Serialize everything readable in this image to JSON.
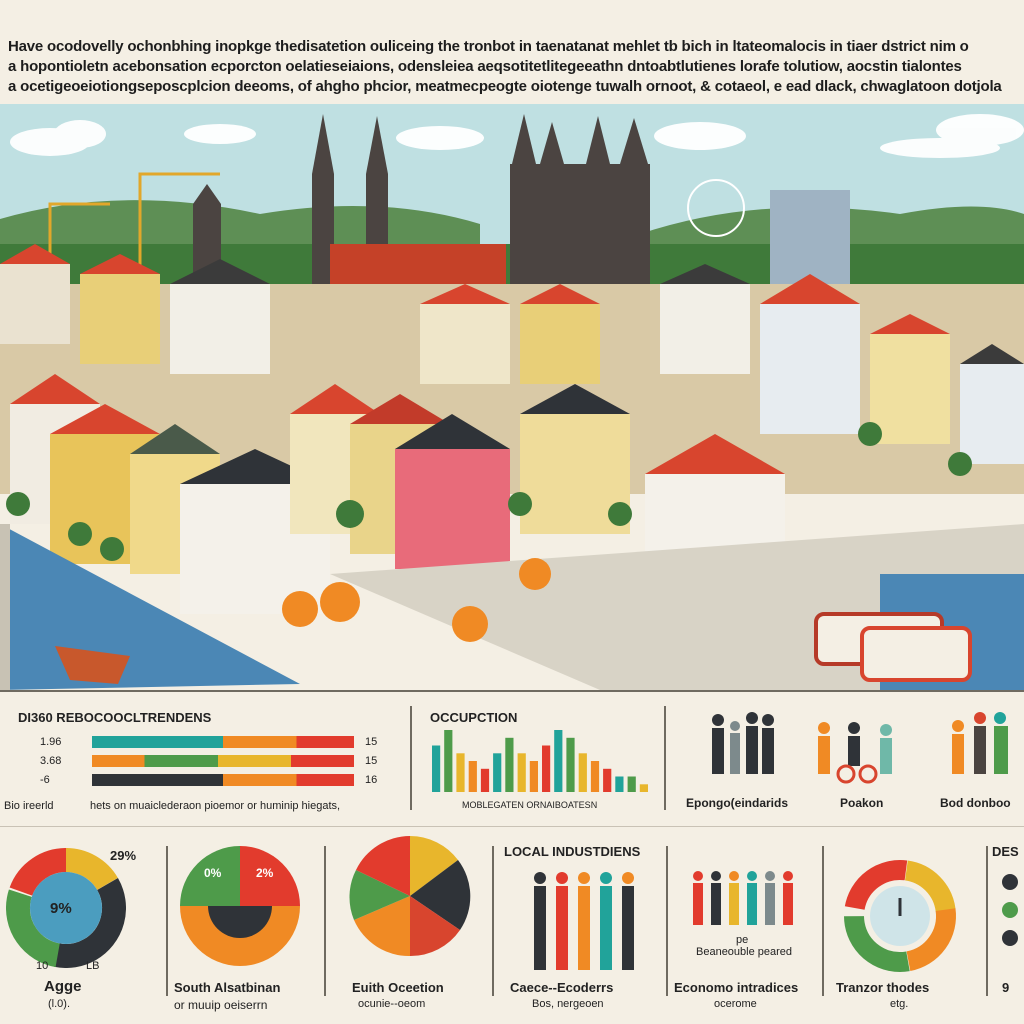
{
  "header": {
    "line1": "Have ocodovelly ochonbhing inopkge thedisatetion ouliceing the tronbot in taenatanat mehlet tb bich in ltateomalocis in tiaer dstrict nim o",
    "line2": "a hopontioletn acebonsation ecporcton oelatieseiaions, odensleiea aeqsotitetlitegeeathn dntoabtlutienes lorafe tolutiow, aocstin tialontes",
    "line3": "a ocetigeoeiotiongseposcplcion deeoms, of ahgho phcior, meatmecpeogte oiotenge tuwalh ornoot, & cotaeol, e ead dlack, chwaglatoon dotjola"
  },
  "panels": {
    "demographic": {
      "title": "DI360 REBOCOOCLTRENDENS",
      "rows": [
        {
          "left": "1.96",
          "right": "15"
        },
        {
          "left": "3.68",
          "right": "15"
        },
        {
          "left": "-6",
          "right": "16"
        }
      ],
      "footer_left": "Bio ireerld",
      "footer_right": "hets on muaiclederaon pioemor or huminip hiegats,"
    },
    "occupation": {
      "title": "OCCUPCTION",
      "caption": "MOBLEGATEN ORNAIBOATESN",
      "values": [
        6,
        8,
        5,
        4,
        3,
        5,
        7,
        5,
        4,
        6,
        8,
        7,
        5,
        4,
        3,
        2,
        2,
        1
      ]
    },
    "people1": {
      "label": "Epongo(eindarids"
    },
    "people2": {
      "label": "Poakon"
    },
    "people3": {
      "label": "Bod donboo"
    },
    "age": {
      "label": "Agge",
      "sub": "(l.0).",
      "pct_top": "29%",
      "pct_center": "9%",
      "tick_left": "10",
      "tick_right": "LB"
    },
    "south": {
      "label": "South Alsatbinan",
      "sub": "or muuip oeiserrn",
      "pct_left": "0%",
      "pct_right": "2%"
    },
    "earth": {
      "label": "Euith Oceetion",
      "sub": "ocunie--oeom"
    },
    "local": {
      "title": "LOCAL INDUSTDIENS",
      "label": "Caece--Ecoderrs",
      "sub": "Bos, nergeoen"
    },
    "economic": {
      "label": "Economo intradices",
      "sub": "ocerome",
      "note_a": "pe",
      "note_b": "Beaneouble peared"
    },
    "transit": {
      "label": "Tranzor thodes",
      "sub": "etg."
    },
    "edge": {
      "title": "DES",
      "digit": "9"
    }
  },
  "colors": {
    "sky": "#bfe0e2",
    "roof_red": "#d8452e",
    "water": "#4b87b5",
    "bar_teal": "#21a39a",
    "bar_orange": "#f08a24",
    "bar_red": "#e23b2d",
    "bar_yellow": "#e8b62c",
    "green": "#4e9b4a"
  }
}
